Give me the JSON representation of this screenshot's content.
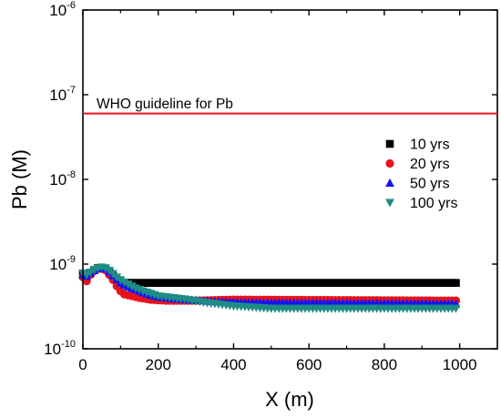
{
  "chart_data": {
    "type": "scatter",
    "xlabel": "X (m)",
    "ylabel": "Pb (M)",
    "xlim": [
      0,
      1100
    ],
    "ylim": [
      1e-10,
      1e-06
    ],
    "yscale": "log",
    "xticks": [
      "0",
      "200",
      "400",
      "600",
      "800",
      "1000"
    ],
    "yticks": [
      {
        "base": "10",
        "exp": "-10"
      },
      {
        "base": "10",
        "exp": "-9"
      },
      {
        "base": "10",
        "exp": "-8"
      },
      {
        "base": "10",
        "exp": "-7"
      },
      {
        "base": "10",
        "exp": "-6"
      }
    ],
    "grid": false,
    "legend_position": "right",
    "reference_line": {
      "label": "WHO guideline for Pb",
      "value": 6e-08,
      "color": "#e8141b"
    },
    "series": [
      {
        "name": "10 yrs",
        "marker": "square",
        "color": "#000000",
        "points": [
          [
            0,
            7.5e-10
          ],
          [
            10,
            7e-10
          ],
          [
            20,
            7.8e-10
          ],
          [
            30,
            8.5e-10
          ],
          [
            40,
            9e-10
          ],
          [
            50,
            9e-10
          ],
          [
            60,
            8.8e-10
          ],
          [
            70,
            8e-10
          ],
          [
            80,
            7.2e-10
          ],
          [
            90,
            6.5e-10
          ],
          [
            100,
            6e-10
          ],
          [
            990,
            6e-10
          ]
        ]
      },
      {
        "name": "20 yrs",
        "marker": "circle",
        "color": "#e8141b",
        "points": [
          [
            0,
            7e-10
          ],
          [
            10,
            6.3e-10
          ],
          [
            20,
            7.5e-10
          ],
          [
            30,
            8.3e-10
          ],
          [
            40,
            8.8e-10
          ],
          [
            50,
            8.8e-10
          ],
          [
            60,
            8.5e-10
          ],
          [
            70,
            7.5e-10
          ],
          [
            80,
            6.5e-10
          ],
          [
            90,
            5.5e-10
          ],
          [
            100,
            4.8e-10
          ],
          [
            110,
            4.4e-10
          ],
          [
            130,
            4.2e-10
          ],
          [
            150,
            4e-10
          ],
          [
            180,
            3.8e-10
          ],
          [
            220,
            3.7e-10
          ],
          [
            300,
            3.7e-10
          ],
          [
            400,
            3.8e-10
          ],
          [
            990,
            3.7e-10
          ]
        ]
      },
      {
        "name": "50 yrs",
        "marker": "triangle-up",
        "color": "#1515f0",
        "points": [
          [
            0,
            7.5e-10
          ],
          [
            10,
            7.2e-10
          ],
          [
            20,
            7.8e-10
          ],
          [
            30,
            8.4e-10
          ],
          [
            40,
            8.9e-10
          ],
          [
            50,
            9e-10
          ],
          [
            60,
            8.8e-10
          ],
          [
            70,
            8.1e-10
          ],
          [
            80,
            7.3e-10
          ],
          [
            90,
            6.6e-10
          ],
          [
            100,
            6e-10
          ],
          [
            120,
            5.4e-10
          ],
          [
            140,
            5e-10
          ],
          [
            160,
            4.6e-10
          ],
          [
            180,
            4.3e-10
          ],
          [
            200,
            4.1e-10
          ],
          [
            240,
            3.9e-10
          ],
          [
            280,
            3.8e-10
          ],
          [
            350,
            3.6e-10
          ],
          [
            450,
            3.5e-10
          ],
          [
            990,
            3.4e-10
          ]
        ]
      },
      {
        "name": "100 yrs",
        "marker": "triangle-down",
        "color": "#1f8c86",
        "points": [
          [
            0,
            7.8e-10
          ],
          [
            10,
            7.5e-10
          ],
          [
            20,
            8e-10
          ],
          [
            30,
            8.6e-10
          ],
          [
            40,
            9e-10
          ],
          [
            50,
            9.2e-10
          ],
          [
            60,
            9e-10
          ],
          [
            70,
            8.4e-10
          ],
          [
            80,
            7.7e-10
          ],
          [
            90,
            7e-10
          ],
          [
            100,
            6.5e-10
          ],
          [
            120,
            5.8e-10
          ],
          [
            140,
            5.2e-10
          ],
          [
            160,
            4.8e-10
          ],
          [
            180,
            4.5e-10
          ],
          [
            200,
            4.2e-10
          ],
          [
            240,
            4e-10
          ],
          [
            280,
            3.8e-10
          ],
          [
            330,
            3.5e-10
          ],
          [
            400,
            3.2e-10
          ],
          [
            500,
            3e-10
          ],
          [
            990,
            3e-10
          ]
        ]
      }
    ]
  }
}
